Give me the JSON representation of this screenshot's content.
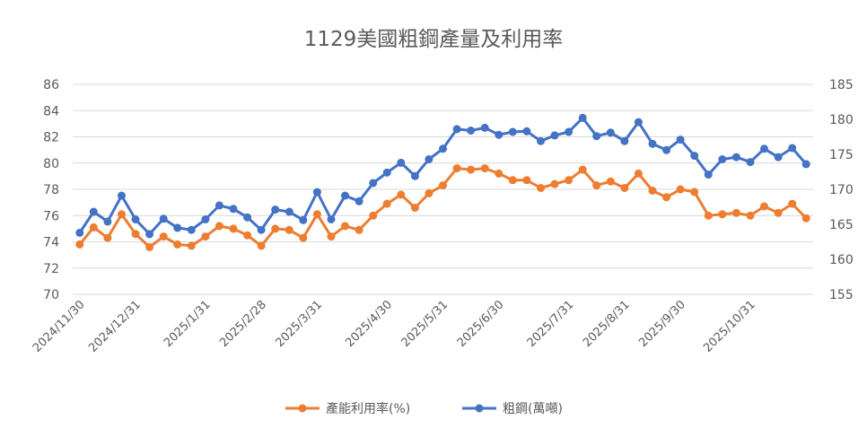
{
  "chart_data": {
    "type": "line",
    "title": "1129美國粗鋼產量及利用率",
    "x_tick_labels": [
      "2024/11/30",
      "2024/12/31",
      "2025/1/31",
      "2025/2/28",
      "2025/3/31",
      "2025/4/30",
      "2025/5/31",
      "2025/6/30",
      "2025/7/31",
      "2025/8/31",
      "2025/9/30",
      "2025/10/31"
    ],
    "x_tick_index": [
      0,
      4,
      9,
      13,
      17,
      22,
      26,
      30,
      35,
      39,
      43,
      48
    ],
    "left_axis": {
      "ylim": [
        70,
        86
      ],
      "ticks": [
        70,
        72,
        74,
        76,
        78,
        80,
        82,
        84,
        86
      ]
    },
    "right_axis": {
      "ylim": [
        155,
        185
      ],
      "ticks": [
        155,
        160,
        165,
        170,
        175,
        180,
        185
      ]
    },
    "grid": true,
    "legend_position": "bottom",
    "series": [
      {
        "name": "產能利用率(%)",
        "axis": "left",
        "color": "#ED7D31",
        "values": [
          73.8,
          75.1,
          74.3,
          76.1,
          74.6,
          73.6,
          74.4,
          73.8,
          73.7,
          74.4,
          75.2,
          75.0,
          74.5,
          73.7,
          75.0,
          74.9,
          74.3,
          76.1,
          74.4,
          75.2,
          74.9,
          76.0,
          76.9,
          77.6,
          76.6,
          77.7,
          78.3,
          79.6,
          79.5,
          79.6,
          79.2,
          78.7,
          78.7,
          78.1,
          78.4,
          78.7,
          79.5,
          78.3,
          78.6,
          78.1,
          79.2,
          77.9,
          77.4,
          78.0,
          77.8,
          76.0,
          76.1,
          76.2,
          76.0,
          76.7,
          76.2,
          76.9,
          75.8
        ]
      },
      {
        "name": "粗鋼(萬噸)",
        "axis": "right",
        "color": "#4472C4",
        "values": [
          163.8,
          166.8,
          165.4,
          169.1,
          165.7,
          163.6,
          165.8,
          164.5,
          164.2,
          165.7,
          167.7,
          167.2,
          166.0,
          164.2,
          167.1,
          166.8,
          165.6,
          169.6,
          165.7,
          169.1,
          168.3,
          170.9,
          172.4,
          173.8,
          171.9,
          174.3,
          175.8,
          178.6,
          178.4,
          178.8,
          177.8,
          178.2,
          178.3,
          176.9,
          177.7,
          178.2,
          180.2,
          177.6,
          178.1,
          176.9,
          179.6,
          176.5,
          175.6,
          177.1,
          174.8,
          172.1,
          174.3,
          174.6,
          173.9,
          175.8,
          174.6,
          175.9,
          173.6
        ]
      }
    ]
  }
}
